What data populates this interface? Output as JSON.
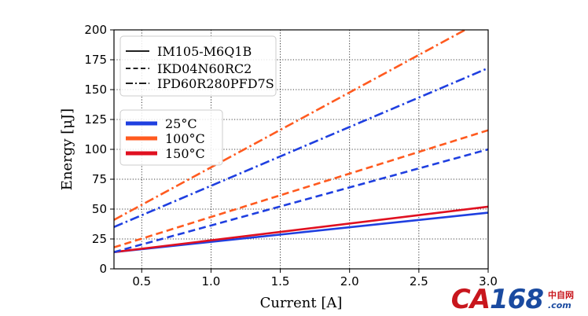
{
  "chart_data": {
    "type": "line",
    "xlabel": "Current [A]",
    "ylabel": "Energy [μJ]",
    "xlim": [
      0.3,
      3.0
    ],
    "ylim": [
      0,
      200
    ],
    "xticks": [
      "0.5",
      "1.0",
      "1.5",
      "2.0",
      "2.5",
      "3.0"
    ],
    "yticks": [
      "0",
      "25",
      "50",
      "75",
      "100",
      "125",
      "150",
      "175",
      "200"
    ],
    "grid": true,
    "legend_position": "top-left",
    "device_legend": [
      {
        "name": "IM105-M6Q1B",
        "dash": "solid"
      },
      {
        "name": "IKD04N60RC2",
        "dash": "dashed"
      },
      {
        "name": "IPD60R280PFD7S",
        "dash": "dashdot"
      }
    ],
    "temperature_legend": [
      {
        "name": "25°C",
        "color": "#1f3fe0"
      },
      {
        "name": "100°C",
        "color": "#ff5a1f"
      },
      {
        "name": "150°C",
        "color": "#e01020"
      }
    ],
    "series": [
      {
        "device": "IM105-M6Q1B",
        "temperature": "25°C",
        "color": "#1f3fe0",
        "dash": "solid",
        "x": [
          0.3,
          3.0
        ],
        "y": [
          14,
          47
        ]
      },
      {
        "device": "IM105-M6Q1B",
        "temperature": "150°C",
        "color": "#e01020",
        "dash": "solid",
        "x": [
          0.3,
          3.0
        ],
        "y": [
          14,
          52
        ]
      },
      {
        "device": "IKD04N60RC2",
        "temperature": "25°C",
        "color": "#1f3fe0",
        "dash": "dashed",
        "x": [
          0.3,
          3.0
        ],
        "y": [
          14,
          100
        ]
      },
      {
        "device": "IKD04N60RC2",
        "temperature": "100°C",
        "color": "#ff5a1f",
        "dash": "dashed",
        "x": [
          0.3,
          3.0
        ],
        "y": [
          18,
          116
        ]
      },
      {
        "device": "IPD60R280PFD7S",
        "temperature": "25°C",
        "color": "#1f3fe0",
        "dash": "dashdot",
        "x": [
          0.3,
          3.0
        ],
        "y": [
          35,
          168
        ]
      },
      {
        "device": "IPD60R280PFD7S",
        "temperature": "100°C",
        "color": "#ff5a1f",
        "dash": "dashdot",
        "x": [
          0.3,
          2.85
        ],
        "y": [
          41,
          201
        ]
      }
    ]
  },
  "watermark": {
    "logo_part1": "CA",
    "logo_part2": "168",
    "logo_color1": "#c8161d",
    "logo_color2": "#1a4aa0",
    "cn_text": "中自网",
    "domain_text": ".com"
  }
}
